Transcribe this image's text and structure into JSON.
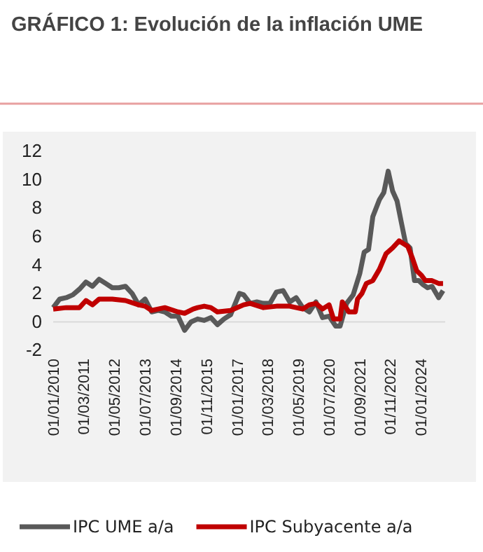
{
  "chart_data": {
    "type": "line",
    "title": "GRÁFICO 1: Evolución de la inflación UME",
    "xlim": [
      "2010-01-01",
      "2024-12-01"
    ],
    "xticks": [
      {
        "value": "2010-01-01",
        "label": "01/01/2010"
      },
      {
        "value": "2011-03-01",
        "label": "01/03/2011"
      },
      {
        "value": "2012-05-01",
        "label": "01/05/2012"
      },
      {
        "value": "2013-07-01",
        "label": "01/07/2013"
      },
      {
        "value": "2014-09-01",
        "label": "01/09/2014"
      },
      {
        "value": "2015-11-01",
        "label": "01/11/2015"
      },
      {
        "value": "2017-01-01",
        "label": "01/01/2017"
      },
      {
        "value": "2018-03-01",
        "label": "01/03/2018"
      },
      {
        "value": "2019-05-01",
        "label": "01/05/2019"
      },
      {
        "value": "2020-07-01",
        "label": "01/07/2020"
      },
      {
        "value": "2021-09-01",
        "label": "01/09/2021"
      },
      {
        "value": "2022-11-01",
        "label": "01/11/2022"
      },
      {
        "value": "2024-01-01",
        "label": "01/01/2024"
      }
    ],
    "ylim": [
      -2,
      12
    ],
    "yticks": [
      -2,
      0,
      2,
      4,
      6,
      8,
      10,
      12
    ],
    "grid": false,
    "legend": "bottom",
    "line_style": "solid",
    "marker": "none",
    "series": [
      {
        "name": "IPC UME a/a",
        "color": "#595959",
        "x": [
          "2010-01",
          "2010-04",
          "2010-07",
          "2010-10",
          "2011-01",
          "2011-04",
          "2011-07",
          "2011-10",
          "2012-01",
          "2012-04",
          "2012-07",
          "2012-10",
          "2013-01",
          "2013-04",
          "2013-07",
          "2013-10",
          "2014-01",
          "2014-04",
          "2014-07",
          "2014-10",
          "2015-01",
          "2015-04",
          "2015-07",
          "2015-10",
          "2016-01",
          "2016-04",
          "2016-07",
          "2016-10",
          "2017-02",
          "2017-04",
          "2017-07",
          "2017-10",
          "2018-01",
          "2018-04",
          "2018-07",
          "2018-10",
          "2019-01",
          "2019-04",
          "2019-07",
          "2019-10",
          "2020-01",
          "2020-04",
          "2020-07",
          "2020-10",
          "2020-12",
          "2021-03",
          "2021-06",
          "2021-09",
          "2021-11",
          "2022-01",
          "2022-03",
          "2022-06",
          "2022-08",
          "2022-10",
          "2022-12",
          "2023-02",
          "2023-04",
          "2023-06",
          "2023-08",
          "2023-10",
          "2023-12",
          "2024-02",
          "2024-04",
          "2024-06",
          "2024-09",
          "2024-11"
        ],
        "values": [
          1.0,
          1.6,
          1.7,
          1.9,
          2.3,
          2.8,
          2.5,
          3.0,
          2.7,
          2.4,
          2.4,
          2.5,
          2.0,
          1.2,
          1.6,
          0.7,
          0.8,
          0.7,
          0.4,
          0.4,
          -0.6,
          0.0,
          0.2,
          0.1,
          0.3,
          -0.2,
          0.2,
          0.5,
          2.0,
          1.9,
          1.3,
          1.4,
          1.3,
          1.3,
          2.1,
          2.2,
          1.4,
          1.7,
          1.0,
          0.7,
          1.4,
          0.3,
          0.4,
          -0.3,
          -0.3,
          1.3,
          1.9,
          3.4,
          4.9,
          5.1,
          7.4,
          8.6,
          9.1,
          10.6,
          9.2,
          8.5,
          7.0,
          5.5,
          5.2,
          2.9,
          2.9,
          2.6,
          2.4,
          2.5,
          1.7,
          2.2
        ]
      },
      {
        "name": "IPC Subyacente a/a",
        "color": "#c00000",
        "x": [
          "2010-01",
          "2010-07",
          "2011-01",
          "2011-04",
          "2011-07",
          "2011-10",
          "2012-04",
          "2012-10",
          "2013-04",
          "2013-07",
          "2013-10",
          "2014-04",
          "2014-10",
          "2015-01",
          "2015-05",
          "2015-07",
          "2015-10",
          "2016-01",
          "2016-04",
          "2016-10",
          "2017-04",
          "2017-07",
          "2018-01",
          "2018-07",
          "2019-01",
          "2019-07",
          "2019-10",
          "2020-01",
          "2020-04",
          "2020-07",
          "2020-09",
          "2020-12",
          "2021-01",
          "2021-04",
          "2021-07",
          "2021-08",
          "2021-10",
          "2021-12",
          "2022-03",
          "2022-06",
          "2022-09",
          "2022-12",
          "2023-03",
          "2023-05",
          "2023-07",
          "2023-09",
          "2023-11",
          "2024-01",
          "2024-03",
          "2024-06",
          "2024-09",
          "2024-11"
        ],
        "values": [
          0.9,
          1.0,
          1.0,
          1.5,
          1.2,
          1.6,
          1.6,
          1.5,
          1.2,
          1.1,
          0.8,
          1.0,
          0.7,
          0.6,
          0.9,
          1.0,
          1.1,
          1.0,
          0.7,
          0.8,
          1.2,
          1.3,
          1.0,
          1.1,
          1.1,
          0.9,
          1.2,
          1.3,
          0.9,
          1.2,
          0.2,
          0.2,
          1.4,
          0.7,
          0.7,
          1.6,
          2.0,
          2.7,
          2.9,
          3.7,
          4.8,
          5.2,
          5.7,
          5.5,
          5.3,
          4.5,
          3.6,
          3.3,
          2.9,
          2.9,
          2.7,
          2.7
        ]
      }
    ]
  }
}
